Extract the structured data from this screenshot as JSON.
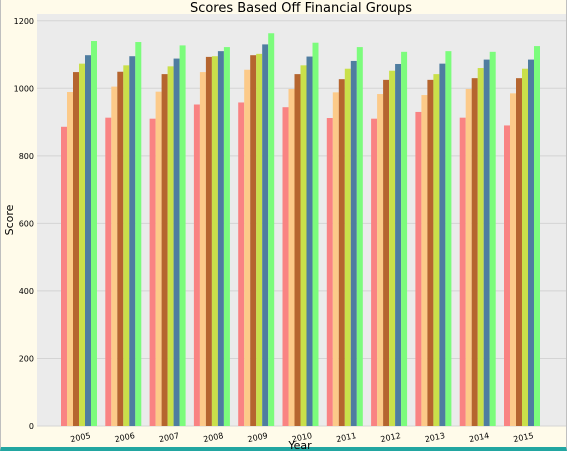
{
  "chart_data": {
    "type": "bar",
    "title": "Scores Based Off Financial Groups",
    "xlabel": "Year",
    "ylabel": "Score",
    "ylim": [
      0,
      1220
    ],
    "yticks": [
      0,
      200,
      400,
      600,
      800,
      1000,
      1200
    ],
    "grid": true,
    "categories": [
      "2005",
      "2006",
      "2007",
      "2008",
      "2009",
      "2010",
      "2011",
      "2012",
      "2013",
      "2014",
      "2015"
    ],
    "series": [
      {
        "color": "#f98383",
        "values": [
          886,
          913,
          910,
          952,
          958,
          944,
          912,
          910,
          930,
          913,
          890
        ]
      },
      {
        "color": "#fcca89",
        "values": [
          989,
          1005,
          990,
          1048,
          1055,
          998,
          988,
          983,
          980,
          998,
          985
        ]
      },
      {
        "color": "#b5652f",
        "values": [
          1048,
          1049,
          1042,
          1093,
          1098,
          1042,
          1027,
          1025,
          1025,
          1030,
          1030
        ]
      },
      {
        "color": "#c9e04a",
        "values": [
          1073,
          1068,
          1065,
          1095,
          1102,
          1068,
          1058,
          1052,
          1042,
          1060,
          1058
        ]
      },
      {
        "color": "#4f7da0",
        "values": [
          1098,
          1095,
          1088,
          1110,
          1130,
          1094,
          1081,
          1072,
          1073,
          1085,
          1085
        ]
      },
      {
        "color": "#7cfc7c",
        "values": [
          1140,
          1137,
          1127,
          1122,
          1163,
          1135,
          1122,
          1108,
          1110,
          1108,
          1125
        ]
      }
    ]
  }
}
